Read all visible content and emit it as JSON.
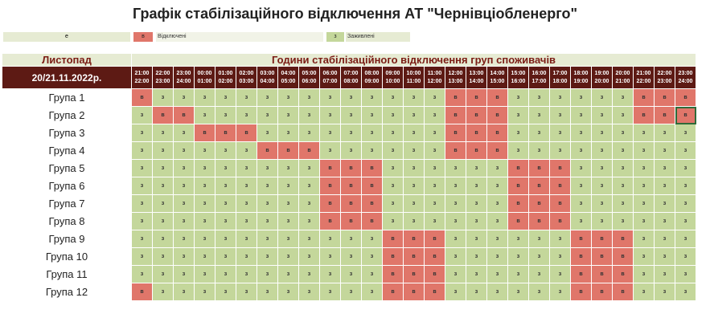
{
  "title": "Графік стабілізаційного відключення АТ \"Чернівціобленерго\"",
  "legend": {
    "e_label": "e",
    "off_code": "в",
    "off_label": "Відключені",
    "on_code": "з",
    "on_label": "Заживлені"
  },
  "header": {
    "month": "Листопад",
    "title": "Години стабілізаційного відключення груп споживачів",
    "date": "20/21.11.2022р."
  },
  "colors": {
    "off": "#e0766a",
    "on": "#c4d79b",
    "header_dark": "#5d1a14",
    "header_light": "#e6ebd3"
  },
  "hours": [
    [
      "21:00",
      "22:00"
    ],
    [
      "22:00",
      "23:00"
    ],
    [
      "23:00",
      "24:00"
    ],
    [
      "00:00",
      "01:00"
    ],
    [
      "01:00",
      "02:00"
    ],
    [
      "02:00",
      "03:00"
    ],
    [
      "03:00",
      "04:00"
    ],
    [
      "04:00",
      "05:00"
    ],
    [
      "05:00",
      "06:00"
    ],
    [
      "06:00",
      "07:00"
    ],
    [
      "07:00",
      "08:00"
    ],
    [
      "08:00",
      "09:00"
    ],
    [
      "09:00",
      "10:00"
    ],
    [
      "10:00",
      "11:00"
    ],
    [
      "11:00",
      "12:00"
    ],
    [
      "12:00",
      "13:00"
    ],
    [
      "13:00",
      "14:00"
    ],
    [
      "14:00",
      "15:00"
    ],
    [
      "15:00",
      "16:00"
    ],
    [
      "16:00",
      "17:00"
    ],
    [
      "17:00",
      "18:00"
    ],
    [
      "18:00",
      "19:00"
    ],
    [
      "19:00",
      "20:00"
    ],
    [
      "20:00",
      "21:00"
    ],
    [
      "21:00",
      "22:00"
    ],
    [
      "22:00",
      "23:00"
    ],
    [
      "23:00",
      "24:00"
    ]
  ],
  "groups": [
    {
      "name": "Група 1",
      "cells": [
        "в",
        "з",
        "з",
        "з",
        "з",
        "з",
        "з",
        "з",
        "з",
        "з",
        "з",
        "з",
        "з",
        "з",
        "з",
        "в",
        "в",
        "в",
        "з",
        "з",
        "з",
        "з",
        "з",
        "з",
        "в",
        "в",
        "в"
      ]
    },
    {
      "name": "Група 2",
      "cells": [
        "з",
        "в",
        "в",
        "з",
        "з",
        "з",
        "з",
        "з",
        "з",
        "з",
        "з",
        "з",
        "з",
        "з",
        "з",
        "в",
        "в",
        "в",
        "з",
        "з",
        "з",
        "з",
        "з",
        "з",
        "в",
        "в",
        "в"
      ]
    },
    {
      "name": "Група 3",
      "cells": [
        "з",
        "з",
        "з",
        "в",
        "в",
        "в",
        "з",
        "з",
        "з",
        "з",
        "з",
        "з",
        "з",
        "з",
        "з",
        "в",
        "в",
        "в",
        "з",
        "з",
        "з",
        "з",
        "з",
        "з",
        "з",
        "з",
        "з"
      ]
    },
    {
      "name": "Група 4",
      "cells": [
        "з",
        "з",
        "з",
        "з",
        "з",
        "з",
        "в",
        "в",
        "в",
        "з",
        "з",
        "з",
        "з",
        "з",
        "з",
        "в",
        "в",
        "в",
        "з",
        "з",
        "з",
        "з",
        "з",
        "з",
        "з",
        "з",
        "з"
      ]
    },
    {
      "name": "Група 5",
      "cells": [
        "з",
        "з",
        "з",
        "з",
        "з",
        "з",
        "з",
        "з",
        "з",
        "в",
        "в",
        "в",
        "з",
        "з",
        "з",
        "з",
        "з",
        "з",
        "в",
        "в",
        "в",
        "з",
        "з",
        "з",
        "з",
        "з",
        "з"
      ]
    },
    {
      "name": "Група 6",
      "cells": [
        "з",
        "з",
        "з",
        "з",
        "з",
        "з",
        "з",
        "з",
        "з",
        "в",
        "в",
        "в",
        "з",
        "з",
        "з",
        "з",
        "з",
        "з",
        "в",
        "в",
        "в",
        "з",
        "з",
        "з",
        "з",
        "з",
        "з"
      ]
    },
    {
      "name": "Група 7",
      "cells": [
        "з",
        "з",
        "з",
        "з",
        "з",
        "з",
        "з",
        "з",
        "з",
        "в",
        "в",
        "в",
        "з",
        "з",
        "з",
        "з",
        "з",
        "з",
        "в",
        "в",
        "в",
        "з",
        "з",
        "з",
        "з",
        "з",
        "з"
      ]
    },
    {
      "name": "Група 8",
      "cells": [
        "з",
        "з",
        "з",
        "з",
        "з",
        "з",
        "з",
        "з",
        "з",
        "в",
        "в",
        "в",
        "з",
        "з",
        "з",
        "з",
        "з",
        "з",
        "в",
        "в",
        "в",
        "з",
        "з",
        "з",
        "з",
        "з",
        "з"
      ]
    },
    {
      "name": "Група 9",
      "cells": [
        "з",
        "з",
        "з",
        "з",
        "з",
        "з",
        "з",
        "з",
        "з",
        "з",
        "з",
        "з",
        "в",
        "в",
        "в",
        "з",
        "з",
        "з",
        "з",
        "з",
        "з",
        "в",
        "в",
        "в",
        "з",
        "з",
        "з"
      ]
    },
    {
      "name": "Група 10",
      "cells": [
        "з",
        "з",
        "з",
        "з",
        "з",
        "з",
        "з",
        "з",
        "з",
        "з",
        "з",
        "з",
        "в",
        "в",
        "в",
        "з",
        "з",
        "з",
        "з",
        "з",
        "з",
        "в",
        "в",
        "в",
        "з",
        "з",
        "з"
      ]
    },
    {
      "name": "Група 11",
      "cells": [
        "з",
        "з",
        "з",
        "з",
        "з",
        "з",
        "з",
        "з",
        "з",
        "з",
        "з",
        "з",
        "в",
        "в",
        "в",
        "з",
        "з",
        "з",
        "з",
        "з",
        "з",
        "в",
        "в",
        "в",
        "з",
        "з",
        "з"
      ]
    },
    {
      "name": "Група 12",
      "cells": [
        "в",
        "з",
        "з",
        "з",
        "з",
        "з",
        "з",
        "з",
        "з",
        "з",
        "з",
        "з",
        "в",
        "в",
        "в",
        "з",
        "з",
        "з",
        "з",
        "з",
        "з",
        "в",
        "в",
        "в",
        "з",
        "з",
        "з"
      ]
    }
  ]
}
